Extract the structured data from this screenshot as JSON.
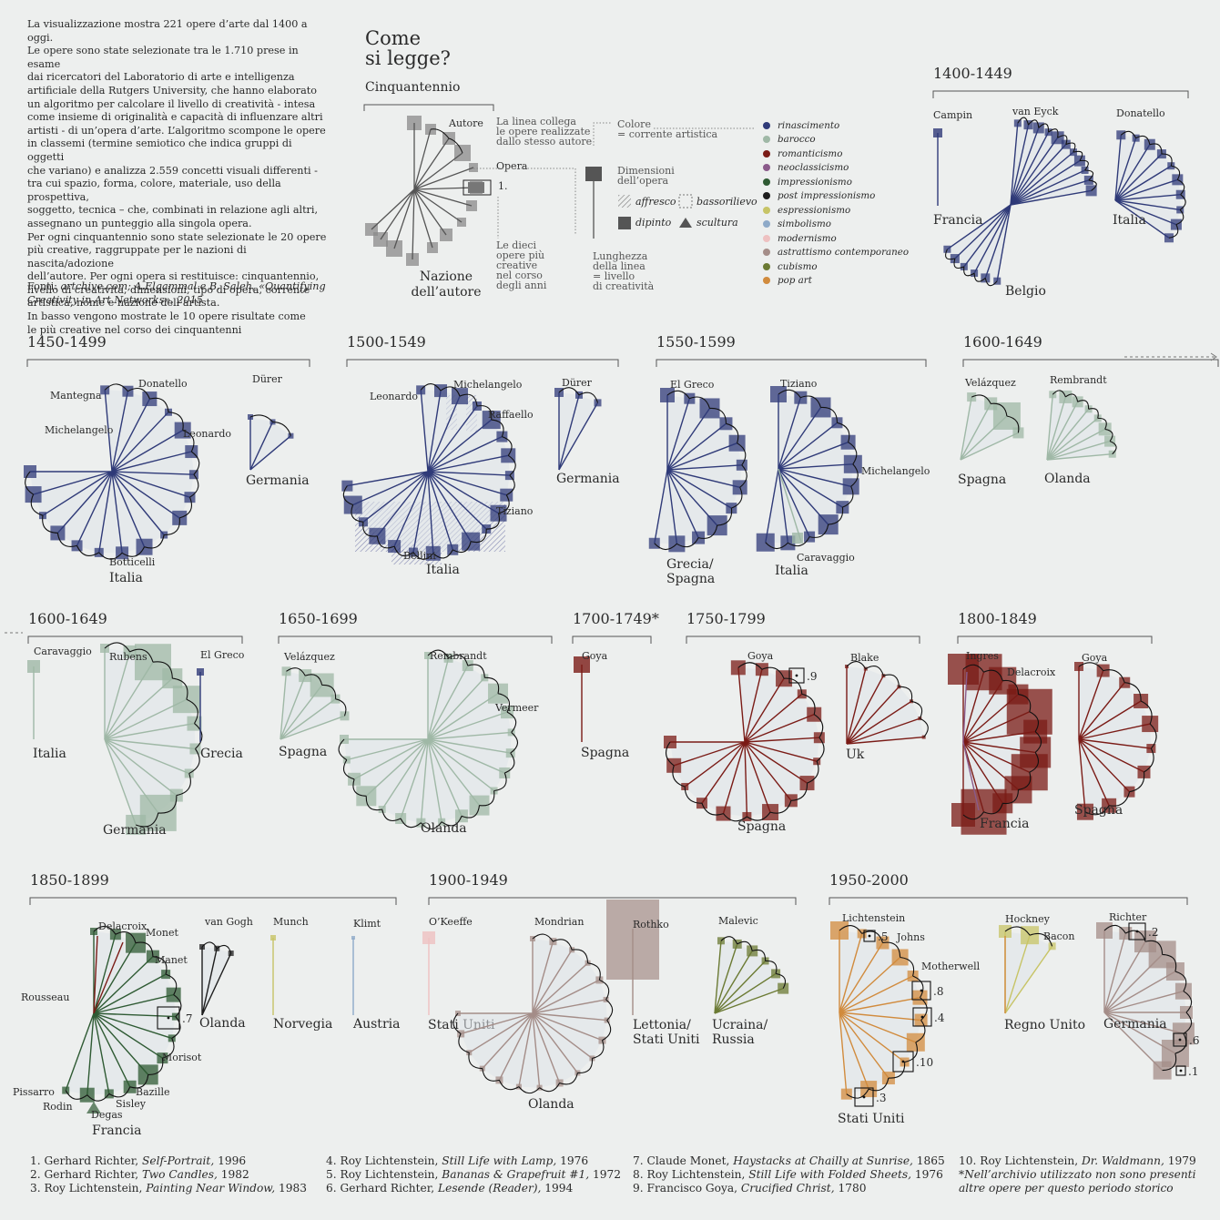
{
  "intro": {
    "lines": [
      "La visualizzazione mostra 221 opere d’arte dal 1400 a oggi.",
      "Le opere sono state selezionate tra le 1.710 prese in esame",
      "dai ricercatori del Laboratorio di arte e intelligenza",
      "artificiale della Rutgers University, che hanno elaborato",
      "un algoritmo per calcolare il livello di creatività - intesa",
      "come insieme di originalità e capacità di influenzare altri",
      "artisti - di un’opera d’arte. L’algoritmo scompone le opere",
      "in classemi (termine semiotico che indica gruppi di oggetti",
      "che variano) e analizza 2.559 concetti visuali differenti -",
      "tra cui spazio, forma, colore, materiale, uso della prospettiva,",
      "soggetto, tecnica – che, combinati in relazione agli altri,",
      "assegnano un punteggio alla singola opera.",
      "Per ogni cinquantennio sono state selezionate le 20 opere",
      "più creative, raggruppate per le nazioni di nascita/adozione",
      "dell’autore. Per ogni opera si restituisce: cinquantennio,",
      "livello di creatività, dimensioni, tipo di opera, corrente",
      "artistica, nome e nazione dell’artista.",
      "In basso vengono mostrate le 10 opere risultate come",
      "le più creative nel corso dei cinquantenni"
    ],
    "sources_label": "Fonti:",
    "sources_text": "artchive.com; A.Elgammal e B. Saleh, «Quantifying",
    "sources_text2": "Creativity in Art Networks», 2015"
  },
  "how_to_read": {
    "title_line1": "Come",
    "title_line2": "si legge?",
    "subtitle": "Cinquantennio",
    "author_label": "Autore",
    "line_note": [
      "La linea collega",
      "le opere realizzate",
      "dallo stesso autore"
    ],
    "work_label": "Opera",
    "rank_label": "1.",
    "top_ten_note": [
      "Le dieci",
      "opere più",
      "creative",
      "nel corso",
      "degli anni"
    ],
    "nation_label": [
      "Nazione",
      "dell’autore"
    ],
    "color_note": [
      "Colore",
      "= corrente artistica"
    ],
    "size_note": [
      "Dimensioni",
      "dell’opera"
    ],
    "affresco": "affresco",
    "bassorilievo": "bassorilievo",
    "dipinto": "dipinto",
    "scultura": "scultura",
    "length_note": [
      "Lunghezza",
      "della linea",
      "= livello",
      "di creatività"
    ]
  },
  "legend": [
    {
      "label": "rinascimento",
      "color": "#2f3a78"
    },
    {
      "label": "barocco",
      "color": "#9fb8a6"
    },
    {
      "label": "romanticismo",
      "color": "#7a1b16"
    },
    {
      "label": "neoclassicismo",
      "color": "#8a5a8a"
    },
    {
      "label": "impressionismo",
      "color": "#2e5a33"
    },
    {
      "label": "post impressionismo",
      "color": "#1d1d1d"
    },
    {
      "label": "espressionismo",
      "color": "#c7c466"
    },
    {
      "label": "simbolismo",
      "color": "#8eaac8"
    },
    {
      "label": "modernismo",
      "color": "#eec1c1"
    },
    {
      "label": "astrattismo contemporaneo",
      "color": "#a48d88"
    },
    {
      "label": "cubismo",
      "color": "#6b7a33"
    },
    {
      "label": "pop art",
      "color": "#d18b3d"
    }
  ],
  "periods": [
    {
      "title": "1400-1449",
      "artists": [
        "Campin",
        "van Eyck",
        "Donatello"
      ],
      "nations": [
        "Francia",
        "Belgio",
        "Italia"
      ]
    },
    {
      "title": "1450-1499",
      "artists": [
        "Mantegna",
        "Donatello",
        "Michelangelo",
        "Leonardo",
        "Botticelli",
        "Dürer"
      ],
      "nations": [
        "Italia",
        "Germania"
      ]
    },
    {
      "title": "1500-1549",
      "artists": [
        "Leonardo",
        "Michelangelo",
        "Raffaello",
        "Tiziano",
        "Bellini",
        "Dürer"
      ],
      "nations": [
        "Italia",
        "Germania"
      ]
    },
    {
      "title": "1550-1599",
      "artists": [
        "El Greco",
        "Tiziano",
        "Michelangelo",
        "Caravaggio"
      ],
      "nations": [
        "Grecia/",
        "Spagna",
        "Italia"
      ]
    },
    {
      "title": "1600-1649",
      "artists": [
        "Velázquez",
        "Rembrandt"
      ],
      "nations": [
        "Spagna",
        "Olanda"
      ]
    },
    {
      "title": "1600-1649",
      "artists": [
        "Caravaggio",
        "Rubens",
        "El Greco"
      ],
      "nations": [
        "Italia",
        "Germania",
        "Grecia"
      ]
    },
    {
      "title": "1650-1699",
      "artists": [
        "Velázquez",
        "Rembrandt",
        "Vermeer"
      ],
      "nations": [
        "Spagna",
        "Olanda"
      ]
    },
    {
      "title": "1700-1749*",
      "artists": [
        "Goya"
      ],
      "nations": [
        "Spagna"
      ]
    },
    {
      "title": "1750-1799",
      "artists": [
        "Goya",
        "Blake"
      ],
      "nations": [
        "Spagna",
        "Uk"
      ],
      "ranks": [
        ".9"
      ]
    },
    {
      "title": "1800-1849",
      "artists": [
        "Ingres",
        "Delacroix",
        "Goya"
      ],
      "nations": [
        "Francia",
        "Spagna"
      ]
    },
    {
      "title": "1850-1899",
      "artists": [
        "Delacroix",
        "Monet",
        "Manet",
        "Rousseau",
        "Morisot",
        "Pissarro",
        "Rodin",
        "Bazille",
        "Sisley",
        "Degas",
        "van Gogh",
        "Munch",
        "Klimt"
      ],
      "nations": [
        "Francia",
        "Olanda",
        "Norvegia",
        "Austria"
      ],
      "ranks": [
        ".7"
      ]
    },
    {
      "title": "1900-1949",
      "artists": [
        "O’Keeffe",
        "Mondrian",
        "Rothko",
        "Malevic"
      ],
      "nations": [
        "Stati Uniti",
        "Olanda",
        "Lettonia/",
        "Stati Uniti",
        "Ucraina/",
        "Russia"
      ]
    },
    {
      "title": "1950-2000",
      "artists": [
        "Lichtenstein",
        "Johns",
        "Motherwell",
        "Hockney",
        "Bacon",
        "Richter"
      ],
      "nations": [
        "Stati Uniti",
        "Regno Unito",
        "Germania"
      ],
      "ranks": [
        ".5",
        ".8",
        ".4",
        ".10",
        ".3",
        ".2",
        ".6",
        ".1"
      ]
    }
  ],
  "footnotes": [
    {
      "n": "1.",
      "author": "Gerhard Richter,",
      "work": "Self-Portrait,",
      "year": "1996"
    },
    {
      "n": "2.",
      "author": "Gerhard Richter,",
      "work": "Two Candles,",
      "year": "1982"
    },
    {
      "n": "3.",
      "author": "Roy Lichtenstein,",
      "work": "Painting Near Window,",
      "year": "1983"
    },
    {
      "n": "4.",
      "author": "Roy Lichtenstein,",
      "work": "Still Life with Lamp,",
      "year": "1976"
    },
    {
      "n": "5.",
      "author": "Roy Lichtenstein,",
      "work": "Bananas & Grapefruit #1,",
      "year": "1972"
    },
    {
      "n": "6.",
      "author": "Gerhard Richter,",
      "work": "Lesende (Reader),",
      "year": "1994"
    },
    {
      "n": "7.",
      "author": "Claude Monet,",
      "work": "Haystacks at Chailly at Sunrise,",
      "year": "1865"
    },
    {
      "n": "8.",
      "author": "Roy Lichtenstein,",
      "work": "Still Life with Folded Sheets,",
      "year": "1976"
    },
    {
      "n": "9.",
      "author": "Francisco Goya,",
      "work": "Crucified Christ,",
      "year": "1780"
    },
    {
      "n": "10.",
      "author": "Roy Lichtenstein,",
      "work": "Dr. Waldmann,",
      "year": "1979"
    }
  ],
  "archive_note": [
    "*Nell’archivio utilizzato non sono presenti",
    "altre opere per questo periodo storico"
  ]
}
